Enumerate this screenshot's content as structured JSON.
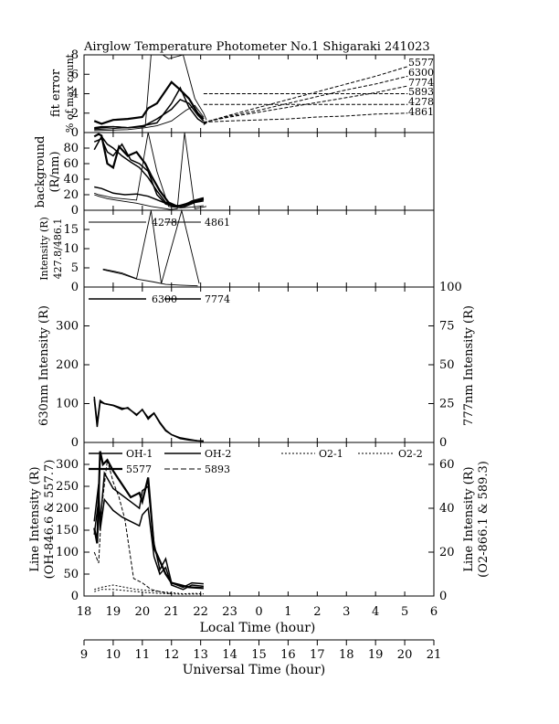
{
  "title": "Airglow Temperature Photometer No.1  Shigaraki  241023",
  "axes": {
    "local_time_label": "Local Time (hour)",
    "local_time_ticks": [
      "18",
      "19",
      "20",
      "21",
      "22",
      "23",
      "0",
      "1",
      "2",
      "3",
      "4",
      "5",
      "6"
    ],
    "universal_time_label": "Universal Time (hour)",
    "universal_time_ticks": [
      "9",
      "10",
      "11",
      "12",
      "13",
      "14",
      "15",
      "16",
      "17",
      "18",
      "19",
      "20",
      "21"
    ]
  },
  "chart_data": [
    {
      "type": "line",
      "panel": "fit-error",
      "ylabel": [
        "fit error",
        "% of max count"
      ],
      "ylim": [
        0,
        8
      ],
      "yticks": [
        "0",
        "2",
        "4",
        "6",
        "8"
      ],
      "x_unit": "Local Time (hour)",
      "legend": [
        "5577",
        "6300",
        "7774",
        "5893",
        "4278",
        "4861"
      ],
      "series": [
        {
          "name": "5577",
          "style": "solid-thick",
          "x": [
            18.35,
            18.6,
            19,
            19.5,
            20,
            20.2,
            20.5,
            21,
            21.3,
            21.6,
            21.9,
            22.1
          ],
          "y": [
            1.2,
            0.9,
            1.3,
            1.4,
            1.6,
            2.5,
            3.0,
            5.2,
            4.4,
            3.5,
            2.0,
            1.4
          ]
        },
        {
          "name": "6300",
          "style": "solid",
          "x": [
            18.35,
            18.6,
            19,
            19.5,
            20,
            20.5,
            21,
            21.3,
            21.6,
            21.9,
            22.1
          ],
          "y": [
            0.5,
            0.6,
            0.6,
            0.5,
            0.7,
            1.0,
            3.0,
            4.6,
            2.6,
            1.4,
            1.0
          ]
        },
        {
          "name": "7774",
          "style": "solid",
          "x": [
            18.35,
            18.6,
            19,
            19.5,
            20,
            20.5,
            21,
            21.3,
            21.6,
            21.9,
            22.1
          ],
          "y": [
            0.4,
            0.5,
            0.6,
            0.5,
            0.6,
            1.4,
            2.4,
            3.4,
            3.0,
            1.8,
            1.2
          ]
        },
        {
          "name": "4278",
          "style": "solid-thin",
          "x": [
            18.35,
            20.1,
            20.3,
            20.7,
            20.9,
            21.4,
            21.8,
            22.1,
            22.2
          ],
          "y": [
            0.3,
            0.6,
            8,
            8,
            7.6,
            8,
            3.5,
            2.0,
            1.3
          ]
        },
        {
          "name": "4861",
          "style": "solid-thin",
          "x": [
            18.35,
            19.5,
            20.1,
            20.5,
            21,
            21.5,
            21.8,
            22.1
          ],
          "y": [
            0.2,
            0.3,
            0.5,
            0.7,
            1.2,
            2.3,
            2.8,
            1.6
          ]
        },
        {
          "name": "5577",
          "style": "dashed",
          "x": [
            22.1,
            22.3,
            23,
            0,
            1,
            2,
            3,
            4,
            5.1
          ],
          "y": [
            0.8,
            1.2,
            1.8,
            2.6,
            3.4,
            4.2,
            5.0,
            5.8,
            6.8
          ]
        },
        {
          "name": "6300",
          "style": "dashed",
          "x": [
            22.1,
            22.3,
            23,
            0,
            1,
            2,
            3,
            4,
            5.1
          ],
          "y": [
            0.9,
            1.2,
            1.7,
            2.3,
            3.0,
            3.7,
            4.4,
            5.0,
            5.8
          ]
        },
        {
          "name": "7774",
          "style": "dashed",
          "x": [
            22.1,
            22.3,
            23,
            0,
            1,
            2,
            3,
            4,
            5.1
          ],
          "y": [
            1.0,
            1.2,
            1.6,
            2.1,
            2.6,
            3.1,
            3.6,
            4.1,
            4.8
          ]
        },
        {
          "name": "5893",
          "style": "dashed",
          "x": [
            22.1,
            22.3,
            5.1
          ],
          "y": [
            4.0,
            4.0,
            4.0
          ]
        },
        {
          "name": "4278",
          "style": "dashed",
          "x": [
            22.1,
            22.3,
            5.1
          ],
          "y": [
            2.9,
            2.9,
            2.9
          ]
        },
        {
          "name": "4861",
          "style": "dashed",
          "x": [
            22.1,
            22.3,
            23,
            0,
            1,
            2,
            3,
            4,
            5.1
          ],
          "y": [
            1.1,
            1.1,
            1.2,
            1.3,
            1.4,
            1.6,
            1.7,
            1.9,
            2.0
          ]
        }
      ]
    },
    {
      "type": "line",
      "panel": "background",
      "ylabel": [
        "background",
        "(R/nm)"
      ],
      "ylim": [
        0,
        100
      ],
      "yticks": [
        "0",
        "20",
        "40",
        "60",
        "80"
      ],
      "x_unit": "Local Time (hour)",
      "series": [
        {
          "name": "5577",
          "style": "solid-thick",
          "x": [
            18.35,
            18.5,
            18.6,
            18.8,
            19,
            19.2,
            19.5,
            19.8,
            20.1,
            20.3,
            20.6,
            20.9,
            21.2,
            21.5,
            21.8,
            22.1
          ],
          "y": [
            95,
            98,
            96,
            60,
            55,
            82,
            70,
            75,
            60,
            45,
            25,
            10,
            5,
            8,
            12,
            15
          ]
        },
        {
          "name": "6300",
          "style": "solid",
          "x": [
            18.35,
            18.6,
            18.8,
            19,
            19.3,
            19.6,
            19.9,
            20.2,
            20.5,
            20.8,
            21.1,
            21.4,
            21.7,
            22.1
          ],
          "y": [
            78,
            95,
            85,
            80,
            70,
            62,
            55,
            42,
            25,
            10,
            6,
            6,
            10,
            14
          ]
        },
        {
          "name": "7774",
          "style": "solid",
          "x": [
            18.35,
            18.6,
            18.8,
            19,
            19.3,
            19.6,
            19.9,
            20.2,
            20.5,
            20.8,
            21.1,
            21.4,
            21.7,
            22.1
          ],
          "y": [
            88,
            92,
            75,
            70,
            85,
            65,
            60,
            50,
            20,
            8,
            5,
            6,
            12,
            16
          ]
        },
        {
          "name": "5893",
          "style": "solid",
          "x": [
            18.35,
            18.6,
            19,
            19.4,
            19.8,
            20.2,
            20.6,
            21,
            21.4,
            21.8,
            22.1
          ],
          "y": [
            30,
            28,
            22,
            20,
            21,
            18,
            12,
            6,
            4,
            10,
            12
          ]
        },
        {
          "name": "4278",
          "style": "solid-thin",
          "x": [
            18.35,
            18.5,
            18.8,
            19.1,
            19.8,
            20.3,
            20.8,
            20.95,
            21.2,
            21.45,
            21.8,
            22.2
          ],
          "y": [
            20,
            18,
            15,
            13,
            9,
            5,
            2,
            1,
            2,
            100,
            2,
            5
          ]
        },
        {
          "name": "4861",
          "style": "solid-thin",
          "x": [
            18.35,
            18.5,
            19,
            19.8,
            20.2,
            20.5,
            20.9,
            21.3,
            21.7,
            22.1
          ],
          "y": [
            22,
            20,
            16,
            13,
            100,
            50,
            5,
            3,
            4,
            6
          ]
        }
      ]
    },
    {
      "type": "line",
      "panel": "intensity-4278-4861",
      "ylabel": [
        "Intensity (R)",
        "427.8/486.1"
      ],
      "ylim": [
        0,
        20
      ],
      "yticks": [
        "0",
        "5",
        "10",
        "15"
      ],
      "x_unit": "Local Time (hour)",
      "legend": [
        "4278",
        "4861"
      ],
      "series": [
        {
          "name": "4278",
          "style": "solid-thin",
          "x": [
            18.65,
            19.3,
            19.8,
            20.3,
            20.65,
            21.35,
            21.95
          ],
          "y": [
            4.7,
            3.7,
            2.2,
            19.9,
            0.9,
            19.9,
            0.9
          ]
        },
        {
          "name": "4861",
          "style": "solid-thin",
          "x": [
            18.65,
            19.3,
            19.8,
            20.4,
            20.8,
            21.3,
            21.9
          ],
          "y": [
            4.5,
            3.4,
            2.1,
            1.3,
            0.7,
            0.5,
            0.3
          ]
        }
      ]
    },
    {
      "type": "line",
      "panel": "intensity-6300-7774",
      "ylabel_left": "630nm Intensity (R)",
      "ylabel_right": "777nm Intensity (R)",
      "ylim_left": [
        0,
        400
      ],
      "ylim_right": [
        0,
        100
      ],
      "yticks_left": [
        "0",
        "100",
        "200",
        "300"
      ],
      "yticks_right": [
        "0",
        "25",
        "50",
        "75",
        "100"
      ],
      "x_unit": "Local Time (hour)",
      "legend": [
        "6300",
        "7774"
      ],
      "series": [
        {
          "name": "6300",
          "axis": "left",
          "style": "solid",
          "x": [
            18.35,
            18.45,
            18.55,
            18.7,
            19,
            19.3,
            19.5,
            19.8,
            20,
            20.2,
            20.4,
            20.6,
            20.8,
            21,
            21.3,
            21.6,
            21.9,
            22.1
          ],
          "y": [
            118,
            50,
            108,
            100,
            95,
            85,
            90,
            70,
            85,
            60,
            75,
            50,
            30,
            20,
            10,
            6,
            4,
            3
          ]
        },
        {
          "name": "7774",
          "axis": "right",
          "style": "solid",
          "x": [
            18.35,
            18.45,
            18.55,
            18.7,
            19,
            19.3,
            19.5,
            19.8,
            20,
            20.2,
            20.4,
            20.6,
            20.8,
            21,
            21.3,
            21.6,
            21.9,
            22.1
          ],
          "y": [
            28,
            10,
            26,
            25,
            24,
            22,
            22,
            18,
            21,
            16,
            19,
            13,
            8,
            5,
            3,
            2,
            1,
            1
          ]
        }
      ]
    },
    {
      "type": "line",
      "panel": "line-intensity",
      "ylabel_left": [
        "Line Intensity (R)",
        "(OH-846.6 & 557.7)"
      ],
      "ylabel_right": [
        "Line Intensity (R)",
        "(O2-866.1 & 589.3)"
      ],
      "ylim_left": [
        0,
        350
      ],
      "ylim_right": [
        0,
        70
      ],
      "yticks_left": [
        "0",
        "50",
        "100",
        "150",
        "200",
        "250",
        "300"
      ],
      "yticks_right": [
        "0",
        "20",
        "40",
        "60"
      ],
      "x_unit": "Local Time (hour)",
      "legend": [
        "OH-1",
        "OH-2",
        "O2-1",
        "O2-2",
        "5577",
        "5893"
      ],
      "series": [
        {
          "name": "OH-1",
          "axis": "left",
          "style": "solid",
          "x": [
            18.35,
            18.5,
            18.55,
            18.7,
            19,
            19.3,
            19.6,
            19.9,
            20,
            20.2,
            20.4,
            20.6,
            20.8,
            21,
            21.2,
            21.4,
            21.7,
            22.1
          ],
          "y": [
            170,
            255,
            165,
            280,
            245,
            230,
            215,
            200,
            240,
            250,
            120,
            60,
            85,
            30,
            25,
            20,
            30,
            28
          ]
        },
        {
          "name": "OH-2",
          "axis": "left",
          "style": "solid",
          "x": [
            18.35,
            18.5,
            18.55,
            18.7,
            19,
            19.3,
            19.6,
            19.9,
            20,
            20.2,
            20.4,
            20.6,
            20.8,
            21,
            21.2,
            21.4,
            21.7,
            22.1
          ],
          "y": [
            140,
            220,
            150,
            220,
            195,
            180,
            170,
            160,
            185,
            200,
            90,
            50,
            65,
            25,
            20,
            15,
            25,
            22
          ]
        },
        {
          "name": "5577",
          "axis": "left",
          "style": "solid-thick",
          "x": [
            18.35,
            18.45,
            18.55,
            18.65,
            18.8,
            19,
            19.3,
            19.6,
            19.9,
            20,
            20.2,
            20.4,
            20.6,
            20.8,
            21,
            21.3,
            21.6,
            22.1
          ],
          "y": [
            155,
            120,
            330,
            300,
            310,
            285,
            255,
            225,
            235,
            215,
            270,
            110,
            80,
            50,
            30,
            25,
            20,
            18
          ]
        },
        {
          "name": "5893",
          "axis": "right",
          "style": "dashed",
          "x": [
            18.35,
            18.5,
            18.6,
            18.8,
            19,
            19.2,
            19.4,
            19.7,
            20,
            20.3,
            20.6,
            21
          ],
          "y": [
            20,
            15,
            40,
            62,
            52,
            45,
            35,
            8,
            6,
            3,
            2,
            1
          ]
        },
        {
          "name": "O2-1",
          "axis": "right",
          "style": "dotted",
          "x": [
            18.35,
            18.6,
            19,
            19.4,
            19.8,
            20.2,
            20.6,
            21,
            21.4,
            21.8,
            22.1
          ],
          "y": [
            3,
            4,
            5,
            4,
            3,
            2.5,
            2,
            1.5,
            1,
            1.2,
            1
          ]
        },
        {
          "name": "O2-2",
          "axis": "right",
          "style": "dotted",
          "x": [
            18.35,
            18.6,
            19,
            19.4,
            19.8,
            20.2,
            20.6,
            21,
            21.4,
            21.8,
            22.1
          ],
          "y": [
            2,
            3,
            3,
            2.5,
            2,
            1.5,
            1.2,
            1,
            0.8,
            0.9,
            0.8
          ]
        }
      ]
    }
  ]
}
